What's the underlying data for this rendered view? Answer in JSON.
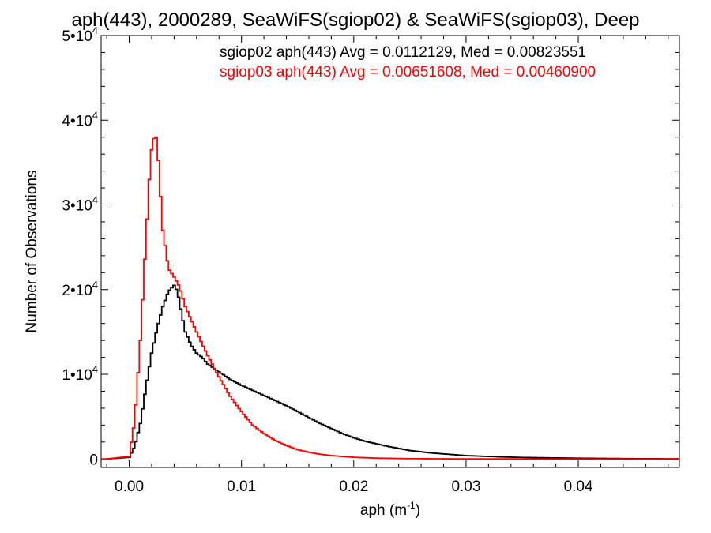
{
  "chart_data": {
    "type": "line",
    "title": "aph(443), 2000289, SeaWiFS(sgiop02) & SeaWiFS(sgiop03), Deep",
    "xlabel": "aph (m",
    "xlabel_sup": "-1",
    "xlabel_close": ")",
    "ylabel": "Number of Observations",
    "xlim": [
      -0.0025,
      0.049
    ],
    "ylim": [
      -1000,
      50000
    ],
    "grid": false,
    "legend_position": "top-right",
    "x_ticks": [
      {
        "value": 0.0,
        "label": "0.00"
      },
      {
        "value": 0.01,
        "label": "0.01"
      },
      {
        "value": 0.02,
        "label": "0.02"
      },
      {
        "value": 0.03,
        "label": "0.03"
      },
      {
        "value": 0.04,
        "label": "0.04"
      }
    ],
    "y_ticks": [
      {
        "value": 0,
        "base": "0",
        "exp": ""
      },
      {
        "value": 10000,
        "base": "1•10",
        "exp": "4"
      },
      {
        "value": 20000,
        "base": "2•10",
        "exp": "4"
      },
      {
        "value": 30000,
        "base": "3•10",
        "exp": "4"
      },
      {
        "value": 40000,
        "base": "4•10",
        "exp": "4"
      },
      {
        "value": 50000,
        "base": "5•10",
        "exp": "4"
      }
    ],
    "series": [
      {
        "name": "sgiop02 aph(443) Avg = 0.0112129, Med = 0.00823551",
        "color": "#000000",
        "x": [
          -0.002,
          0.0,
          0.0005,
          0.001,
          0.0015,
          0.002,
          0.0025,
          0.003,
          0.0035,
          0.004,
          0.0043,
          0.0047,
          0.005,
          0.0055,
          0.006,
          0.0065,
          0.007,
          0.008,
          0.009,
          0.01,
          0.011,
          0.012,
          0.013,
          0.014,
          0.015,
          0.016,
          0.017,
          0.018,
          0.019,
          0.02,
          0.021,
          0.022,
          0.023,
          0.025,
          0.027,
          0.03,
          0.033,
          0.035,
          0.04,
          0.045,
          0.049
        ],
        "y": [
          0,
          200,
          1500,
          4200,
          8500,
          12500,
          15500,
          18000,
          19800,
          20500,
          19800,
          17000,
          15000,
          13500,
          12500,
          12000,
          11200,
          10300,
          9400,
          8700,
          8100,
          7500,
          6900,
          6300,
          5600,
          4900,
          4200,
          3600,
          3000,
          2500,
          2100,
          1800,
          1500,
          1000,
          700,
          400,
          250,
          180,
          90,
          40,
          20
        ]
      },
      {
        "name": "sgiop03 aph(443) Avg = 0.00651608, Med = 0.00460900",
        "color": "#ff0000",
        "x": [
          -0.002,
          0.0,
          0.0005,
          0.001,
          0.0015,
          0.0018,
          0.002,
          0.0023,
          0.0025,
          0.0027,
          0.003,
          0.0035,
          0.004,
          0.0045,
          0.005,
          0.006,
          0.007,
          0.008,
          0.009,
          0.01,
          0.011,
          0.012,
          0.013,
          0.014,
          0.015,
          0.016,
          0.017,
          0.018,
          0.02,
          0.022,
          0.025,
          0.03,
          0.035,
          0.04,
          0.049
        ],
        "y": [
          0,
          300,
          4500,
          14000,
          26000,
          33000,
          36500,
          38500,
          37500,
          33000,
          27000,
          22500,
          21500,
          20300,
          18000,
          15000,
          12200,
          9700,
          7400,
          5600,
          4000,
          3000,
          2200,
          1600,
          1100,
          800,
          560,
          400,
          200,
          100,
          40,
          10,
          5,
          0,
          0
        ]
      }
    ]
  }
}
